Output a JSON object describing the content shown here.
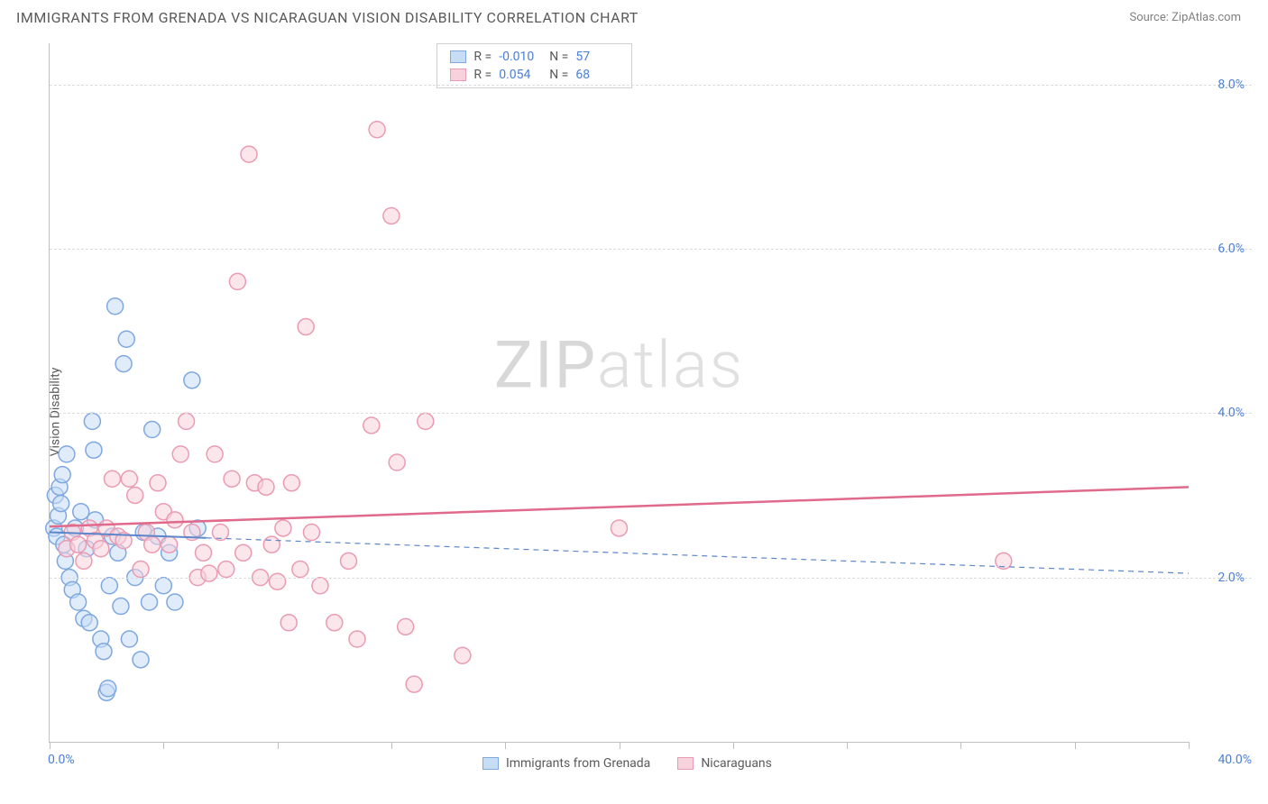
{
  "header": {
    "title": "IMMIGRANTS FROM GRENADA VS NICARAGUAN VISION DISABILITY CORRELATION CHART",
    "source": "Source: ZipAtlas.com"
  },
  "watermark": {
    "prefix": "ZIP",
    "suffix": "atlas"
  },
  "chart": {
    "type": "scatter",
    "ylabel": "Vision Disability",
    "background_color": "#ffffff",
    "grid_color": "#dcdcdc",
    "axis_color": "#c0c0c0",
    "xlim": [
      0,
      40
    ],
    "ylim": [
      0,
      8.5
    ],
    "xticks": [
      0,
      4,
      8,
      12,
      16,
      20,
      24,
      28,
      32,
      36,
      40
    ],
    "xtick_labels": {
      "0": "0.0%",
      "40": "40.0%"
    },
    "yticks": [
      2,
      4,
      6,
      8
    ],
    "ytick_labels": [
      "2.0%",
      "4.0%",
      "6.0%",
      "8.0%"
    ],
    "marker_radius": 9,
    "marker_stroke_width": 1.5,
    "series": [
      {
        "id": "grenada",
        "label": "Immigrants from Grenada",
        "fill": "#c7dcf5",
        "stroke": "#7fa8e0",
        "fill_opacity": 0.55,
        "R": "-0.010",
        "N": "57",
        "trend": {
          "y_at_x0": 2.55,
          "y_at_xmax": 2.05,
          "color": "#5b86c9",
          "solid_until_x": 5.5,
          "width": 2
        },
        "points": [
          [
            0.15,
            2.6
          ],
          [
            0.2,
            3.0
          ],
          [
            0.25,
            2.5
          ],
          [
            0.3,
            2.75
          ],
          [
            0.35,
            3.1
          ],
          [
            0.4,
            2.9
          ],
          [
            0.45,
            3.25
          ],
          [
            0.5,
            2.4
          ],
          [
            0.55,
            2.2
          ],
          [
            0.6,
            3.5
          ],
          [
            0.7,
            2.0
          ],
          [
            0.8,
            1.85
          ],
          [
            0.9,
            2.6
          ],
          [
            1.0,
            1.7
          ],
          [
            1.1,
            2.8
          ],
          [
            1.2,
            1.5
          ],
          [
            1.3,
            2.35
          ],
          [
            1.4,
            1.45
          ],
          [
            1.5,
            3.9
          ],
          [
            1.55,
            3.55
          ],
          [
            1.6,
            2.7
          ],
          [
            1.8,
            1.25
          ],
          [
            1.9,
            1.1
          ],
          [
            2.0,
            0.6
          ],
          [
            2.05,
            0.65
          ],
          [
            2.1,
            1.9
          ],
          [
            2.2,
            2.5
          ],
          [
            2.3,
            5.3
          ],
          [
            2.4,
            2.3
          ],
          [
            2.5,
            1.65
          ],
          [
            2.6,
            4.6
          ],
          [
            2.7,
            4.9
          ],
          [
            2.8,
            1.25
          ],
          [
            3.0,
            2.0
          ],
          [
            3.2,
            1.0
          ],
          [
            3.3,
            2.55
          ],
          [
            3.5,
            1.7
          ],
          [
            3.6,
            3.8
          ],
          [
            3.8,
            2.5
          ],
          [
            4.0,
            1.9
          ],
          [
            4.2,
            2.3
          ],
          [
            4.4,
            1.7
          ],
          [
            5.0,
            4.4
          ],
          [
            5.2,
            2.6
          ]
        ]
      },
      {
        "id": "nicaraguans",
        "label": "Nicaraguans",
        "fill": "#f7d2dc",
        "stroke": "#ea9bb2",
        "fill_opacity": 0.55,
        "R": "0.054",
        "N": "68",
        "trend": {
          "y_at_x0": 2.62,
          "y_at_xmax": 3.1,
          "color": "#e06a8b",
          "solid_until_x": 40,
          "width": 2.5
        },
        "points": [
          [
            0.6,
            2.35
          ],
          [
            0.8,
            2.55
          ],
          [
            1.0,
            2.4
          ],
          [
            1.2,
            2.2
          ],
          [
            1.4,
            2.6
          ],
          [
            1.6,
            2.45
          ],
          [
            1.8,
            2.35
          ],
          [
            2.0,
            2.6
          ],
          [
            2.2,
            3.2
          ],
          [
            2.4,
            2.5
          ],
          [
            2.6,
            2.45
          ],
          [
            2.8,
            3.2
          ],
          [
            3.0,
            3.0
          ],
          [
            3.2,
            2.1
          ],
          [
            3.4,
            2.55
          ],
          [
            3.6,
            2.4
          ],
          [
            3.8,
            3.15
          ],
          [
            4.0,
            2.8
          ],
          [
            4.2,
            2.4
          ],
          [
            4.4,
            2.7
          ],
          [
            4.6,
            3.5
          ],
          [
            4.8,
            3.9
          ],
          [
            5.0,
            2.55
          ],
          [
            5.2,
            2.0
          ],
          [
            5.4,
            2.3
          ],
          [
            5.6,
            2.05
          ],
          [
            5.8,
            3.5
          ],
          [
            6.0,
            2.55
          ],
          [
            6.2,
            2.1
          ],
          [
            6.4,
            3.2
          ],
          [
            6.6,
            5.6
          ],
          [
            6.8,
            2.3
          ],
          [
            7.0,
            7.15
          ],
          [
            7.2,
            3.15
          ],
          [
            7.4,
            2.0
          ],
          [
            7.6,
            3.1
          ],
          [
            7.8,
            2.4
          ],
          [
            8.0,
            1.95
          ],
          [
            8.2,
            2.6
          ],
          [
            8.4,
            1.45
          ],
          [
            8.5,
            3.15
          ],
          [
            8.8,
            2.1
          ],
          [
            9.0,
            5.05
          ],
          [
            9.2,
            2.55
          ],
          [
            9.5,
            1.9
          ],
          [
            10.0,
            1.45
          ],
          [
            10.5,
            2.2
          ],
          [
            10.8,
            1.25
          ],
          [
            11.3,
            3.85
          ],
          [
            11.5,
            7.45
          ],
          [
            12.0,
            6.4
          ],
          [
            12.2,
            3.4
          ],
          [
            12.5,
            1.4
          ],
          [
            12.8,
            0.7
          ],
          [
            13.2,
            3.9
          ],
          [
            14.5,
            1.05
          ],
          [
            20.0,
            2.6
          ],
          [
            33.5,
            2.2
          ]
        ]
      }
    ],
    "legend_top": {
      "border_color": "#d0d0d0",
      "text_color": "#5a5a5a",
      "value_color": "#4a7fd6"
    },
    "legend_bottom": {
      "text_color": "#5a5a5a"
    }
  }
}
